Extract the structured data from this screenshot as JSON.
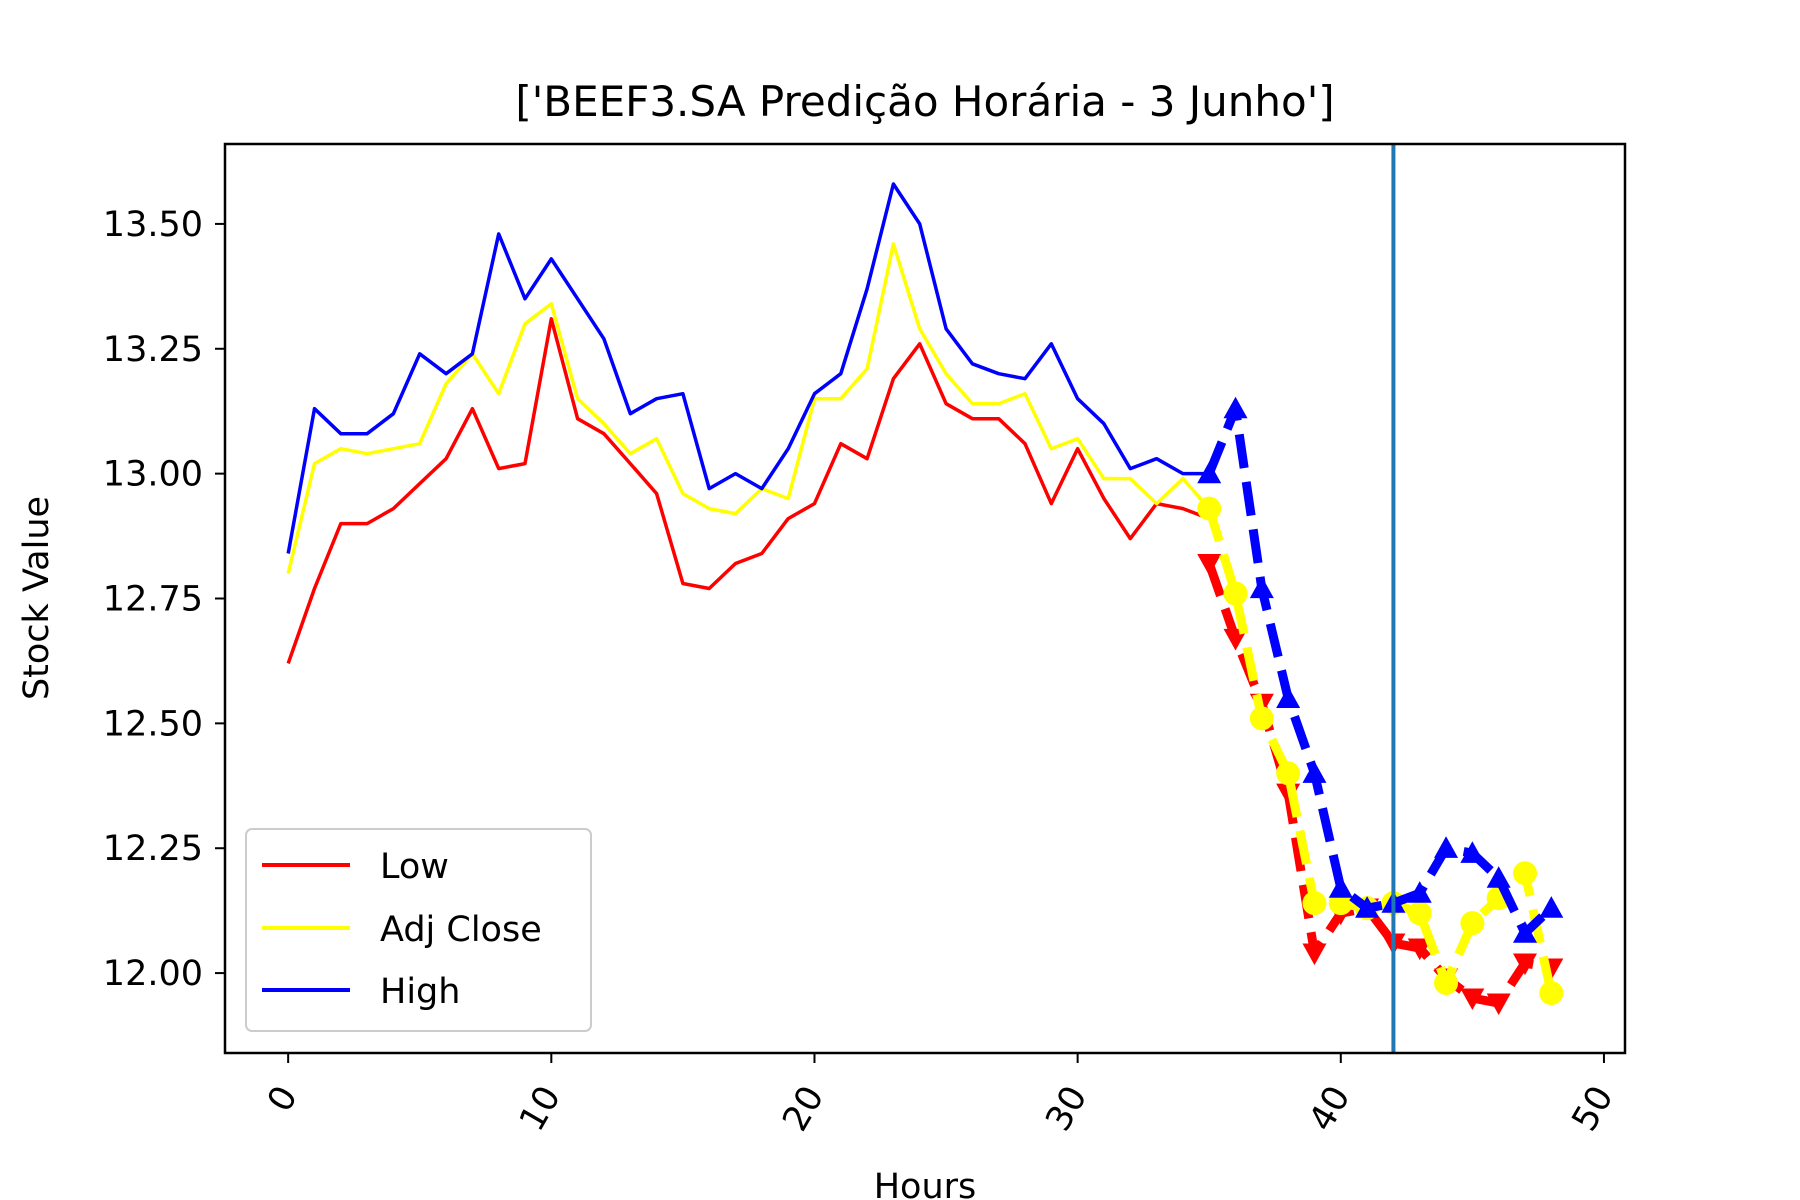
{
  "chart_data": {
    "type": "line",
    "title": "['BEEF3.SA Predição Horária - 3 Junho']",
    "xlabel": "Hours",
    "ylabel": "Stock Value",
    "xlim": [
      -2.4,
      50.8
    ],
    "ylim": [
      11.84,
      13.66
    ],
    "x_ticks": [
      "0",
      "10",
      "20",
      "30",
      "40",
      "50"
    ],
    "y_ticks": [
      "12.00",
      "12.25",
      "12.50",
      "12.75",
      "13.00",
      "13.25",
      "13.50"
    ],
    "grid": false,
    "legend_position": "lower-left",
    "vertical_line": {
      "x": 42,
      "color": "#1f77b4"
    },
    "series": [
      {
        "name": "Low",
        "color": "#ff0000",
        "x": [
          0,
          1,
          2,
          3,
          4,
          5,
          6,
          7,
          8,
          9,
          10,
          11,
          12,
          13,
          14,
          15,
          16,
          17,
          18,
          19,
          20,
          21,
          22,
          23,
          24,
          25,
          26,
          27,
          28,
          29,
          30,
          31,
          32,
          33,
          34,
          35
        ],
        "values": [
          12.62,
          12.77,
          12.9,
          12.9,
          12.93,
          12.98,
          13.03,
          13.13,
          13.01,
          13.02,
          13.31,
          13.11,
          13.08,
          13.02,
          12.96,
          12.78,
          12.77,
          12.82,
          12.84,
          12.91,
          12.94,
          13.06,
          13.03,
          13.19,
          13.26,
          13.14,
          13.11,
          13.11,
          13.06,
          12.94,
          13.05,
          12.95,
          12.87,
          12.94,
          12.93,
          12.91
        ]
      },
      {
        "name": "Adj Close",
        "color": "#ffff00",
        "x": [
          0,
          1,
          2,
          3,
          4,
          5,
          6,
          7,
          8,
          9,
          10,
          11,
          12,
          13,
          14,
          15,
          16,
          17,
          18,
          19,
          20,
          21,
          22,
          23,
          24,
          25,
          26,
          27,
          28,
          29,
          30,
          31,
          32,
          33,
          34,
          35
        ],
        "values": [
          12.8,
          13.02,
          13.05,
          13.04,
          13.05,
          13.06,
          13.18,
          13.24,
          13.16,
          13.3,
          13.34,
          13.15,
          13.1,
          13.04,
          13.07,
          12.96,
          12.93,
          12.92,
          12.97,
          12.95,
          13.15,
          13.15,
          13.21,
          13.46,
          13.29,
          13.2,
          13.14,
          13.14,
          13.16,
          13.05,
          13.07,
          12.99,
          12.99,
          12.94,
          12.99,
          12.93
        ]
      },
      {
        "name": "High",
        "color": "#0000ff",
        "x": [
          0,
          1,
          2,
          3,
          4,
          5,
          6,
          7,
          8,
          9,
          10,
          11,
          12,
          13,
          14,
          15,
          16,
          17,
          18,
          19,
          20,
          21,
          22,
          23,
          24,
          25,
          26,
          27,
          28,
          29,
          30,
          31,
          32,
          33,
          34,
          35
        ],
        "values": [
          12.84,
          13.13,
          13.08,
          13.08,
          13.12,
          13.24,
          13.2,
          13.24,
          13.48,
          13.35,
          13.43,
          13.35,
          13.27,
          13.12,
          13.15,
          13.16,
          12.97,
          13.0,
          12.97,
          13.05,
          13.16,
          13.2,
          13.37,
          13.58,
          13.5,
          13.29,
          13.22,
          13.2,
          13.19,
          13.26,
          13.15,
          13.1,
          13.01,
          13.03,
          13.0,
          13.0
        ]
      }
    ],
    "prediction_series": [
      {
        "name": "",
        "color": "#ff0000",
        "marker": "triangle-down",
        "x": [
          35,
          36,
          37,
          38,
          39,
          40,
          41,
          42,
          43,
          44,
          45,
          46,
          47,
          48
        ],
        "values": [
          12.82,
          12.67,
          12.54,
          12.36,
          12.04,
          12.12,
          12.13,
          12.06,
          12.05,
          11.99,
          11.95,
          11.94,
          12.02,
          12.01
        ]
      },
      {
        "name": "",
        "color": "#ffff00",
        "marker": "circle",
        "x": [
          35,
          36,
          37,
          38,
          39,
          40,
          41,
          42,
          43,
          44,
          45,
          46,
          47,
          48
        ],
        "values": [
          12.93,
          12.76,
          12.51,
          12.4,
          12.14,
          12.14,
          12.13,
          12.14,
          12.12,
          11.98,
          12.1,
          12.15,
          12.2,
          11.96
        ]
      },
      {
        "name": "",
        "color": "#0000ff",
        "marker": "triangle-up",
        "x": [
          35,
          36,
          37,
          38,
          39,
          40,
          41,
          42,
          43,
          44,
          45,
          46,
          47,
          48
        ],
        "values": [
          13.0,
          13.13,
          12.77,
          12.55,
          12.4,
          12.17,
          12.13,
          12.14,
          12.16,
          12.25,
          12.24,
          12.19,
          12.08,
          12.13
        ]
      }
    ]
  }
}
